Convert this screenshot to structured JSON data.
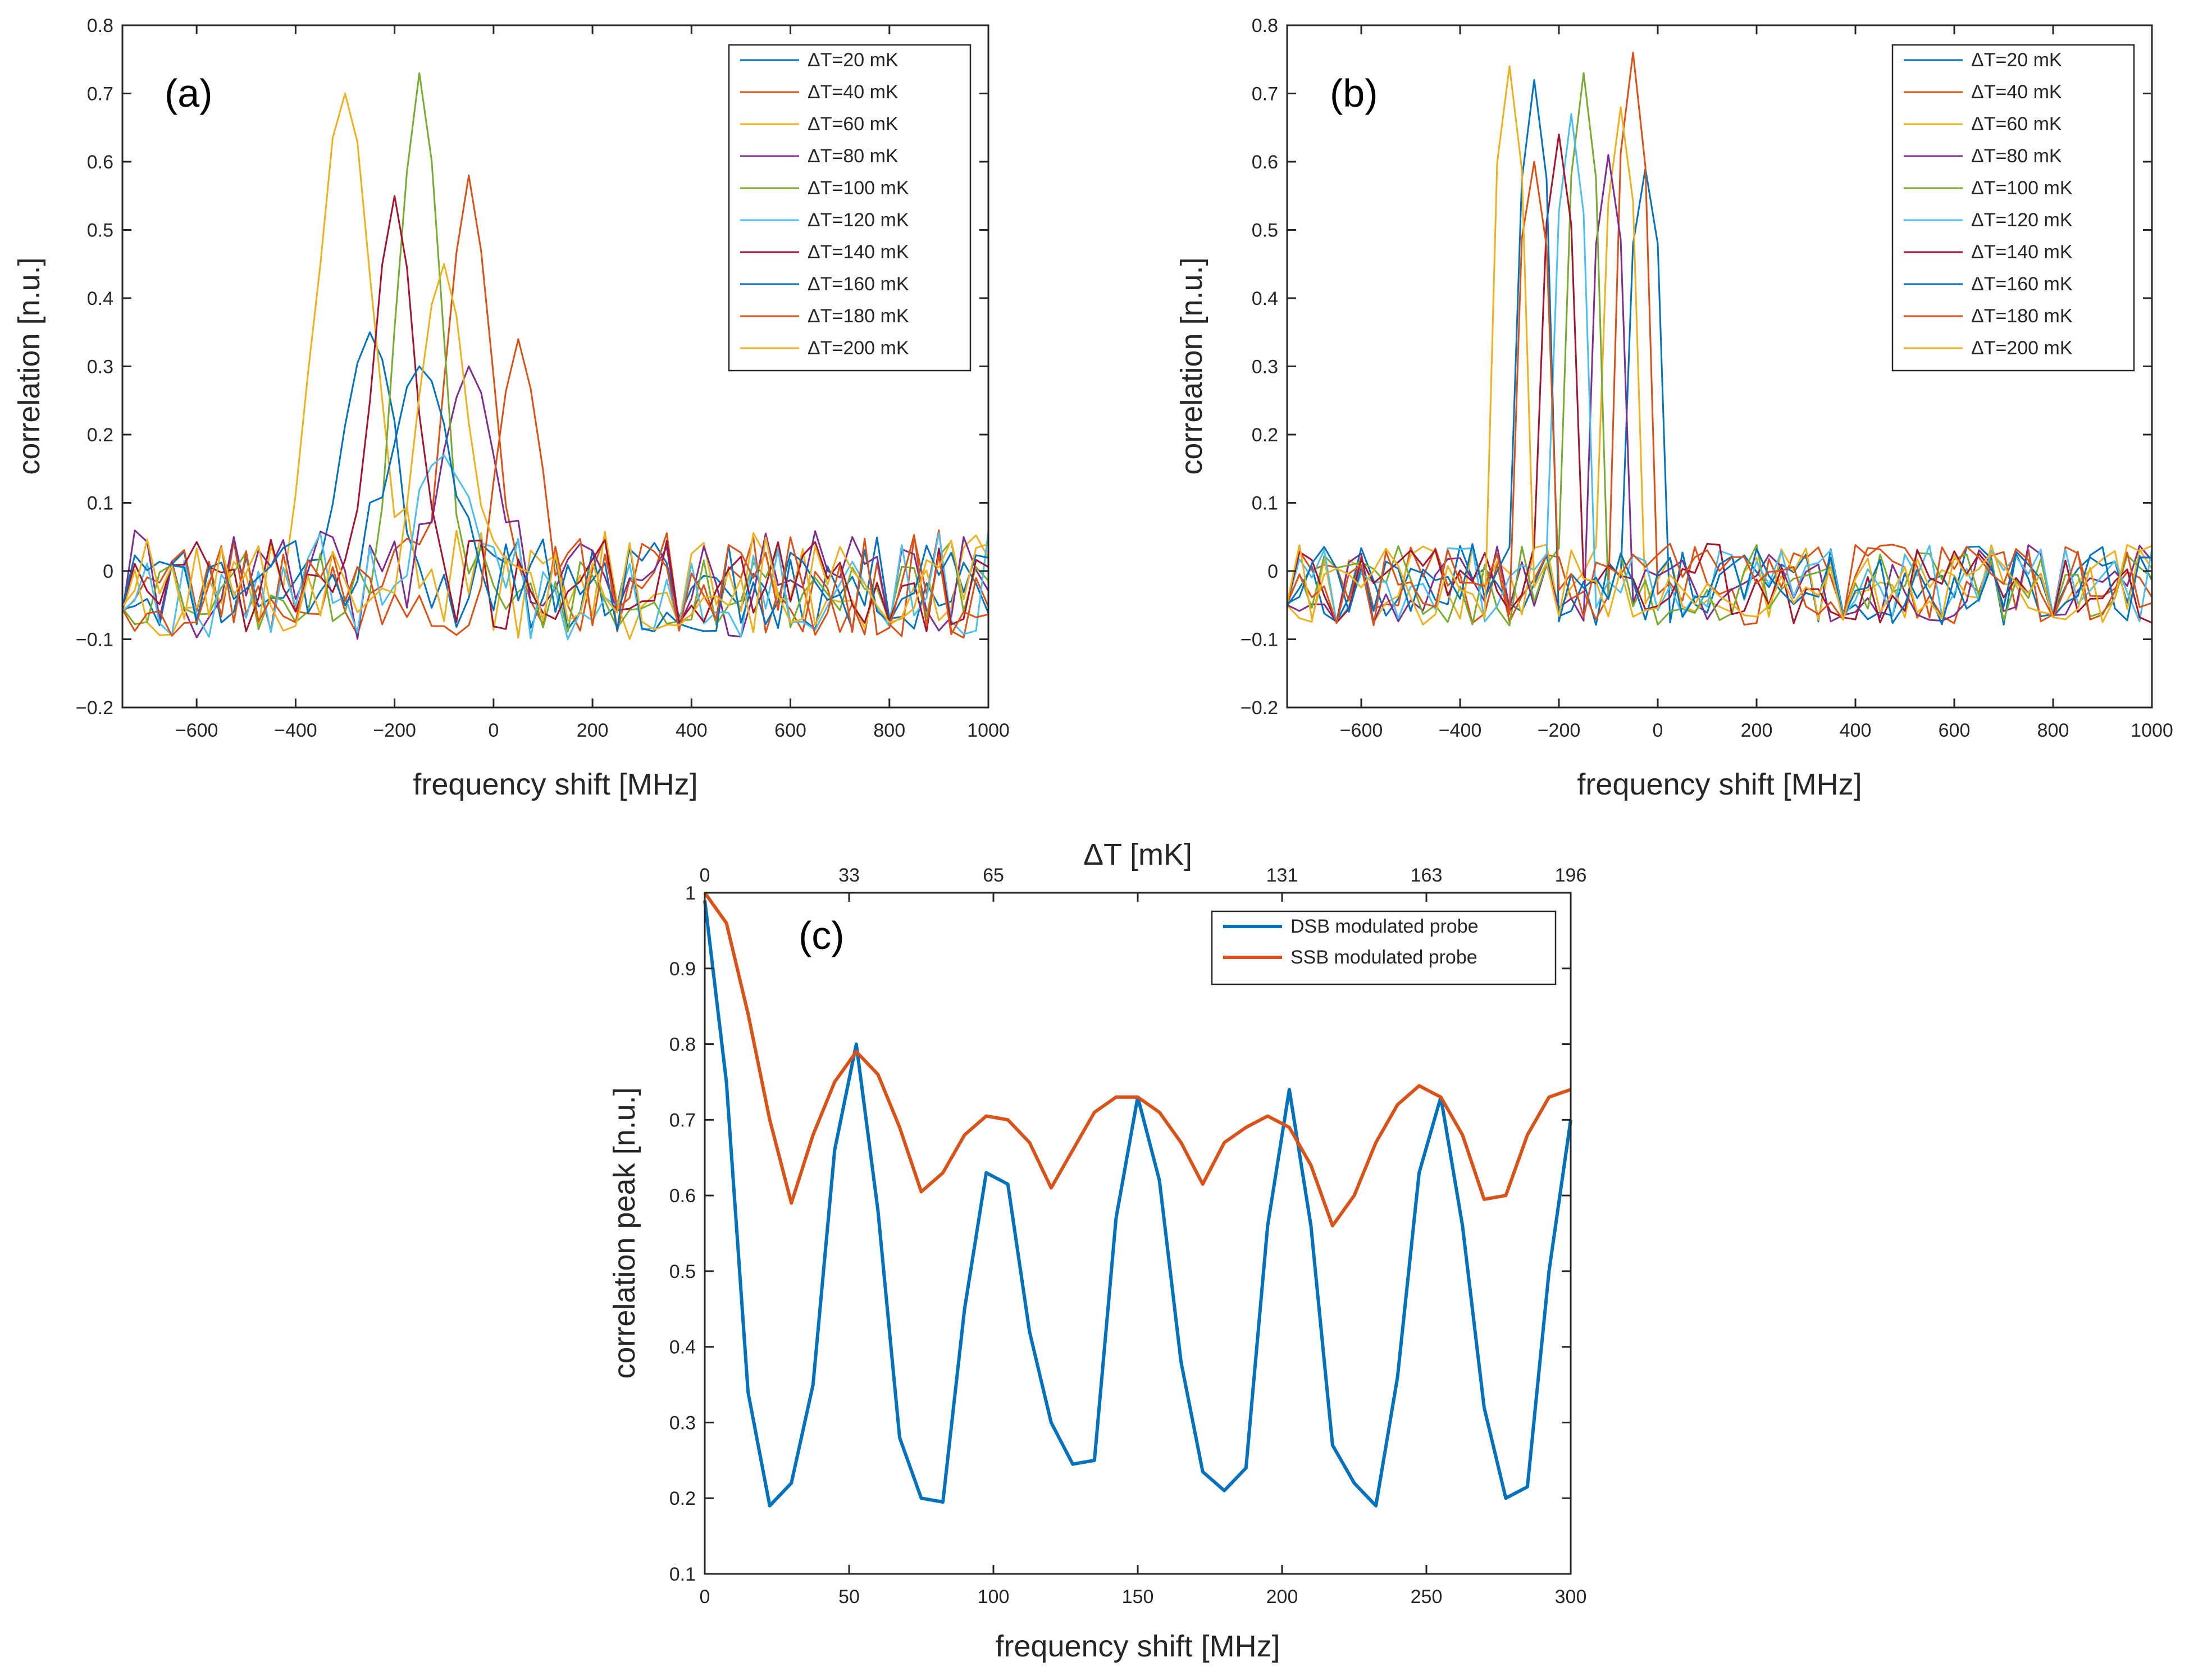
{
  "chart_data": [
    {
      "type": "line",
      "panel_label": "(a)",
      "xlabel": "frequency shift [MHz]",
      "ylabel": "correlation [n.u.]",
      "xlim": [
        -750,
        1000
      ],
      "ylim": [
        -0.2,
        0.8
      ],
      "xticks": [
        -600,
        -400,
        -200,
        0,
        200,
        400,
        600,
        800,
        1000
      ],
      "xtick_labels": [
        "−600",
        "−400",
        "−200",
        "0",
        "200",
        "400",
        "600",
        "800",
        "1000"
      ],
      "yticks": [
        -0.2,
        -0.1,
        0,
        0.1,
        0.2,
        0.3,
        0.4,
        0.5,
        0.6,
        0.7,
        0.8
      ],
      "ytick_labels": [
        "−0.2",
        "−0.1",
        "0",
        "0.1",
        "0.2",
        "0.3",
        "0.4",
        "0.5",
        "0.6",
        "0.7",
        "0.8"
      ],
      "grid": false,
      "legend_position": "top-right",
      "series": [
        {
          "name": "ΔT=20 mK",
          "color": "#0072BD",
          "peak": -250,
          "peak_value": 0.35,
          "width": 50,
          "noise": 0.07,
          "seed": 11,
          "shape": "wide"
        },
        {
          "name": "ΔT=40 mK",
          "color": "#D95319",
          "peak": -50,
          "peak_value": 0.58,
          "width": 40,
          "noise": 0.08,
          "seed": 23,
          "shape": "wide"
        },
        {
          "name": "ΔT=60 mK",
          "color": "#EDB120",
          "peak": -300,
          "peak_value": 0.7,
          "width": 55,
          "noise": 0.08,
          "seed": 37,
          "shape": "wide"
        },
        {
          "name": "ΔT=80 mK",
          "color": "#7E2F8E",
          "peak": -50,
          "peak_value": 0.3,
          "width": 50,
          "noise": 0.08,
          "seed": 41,
          "shape": "wide"
        },
        {
          "name": "ΔT=100 mK",
          "color": "#77AC30",
          "peak": -150,
          "peak_value": 0.73,
          "width": 40,
          "noise": 0.07,
          "seed": 53,
          "shape": "wide"
        },
        {
          "name": "ΔT=120 mK",
          "color": "#4DBEEE",
          "peak": -100,
          "peak_value": 0.17,
          "width": 50,
          "noise": 0.08,
          "seed": 67,
          "shape": "wide"
        },
        {
          "name": "ΔT=140 mK",
          "color": "#A2142F",
          "peak": -200,
          "peak_value": 0.55,
          "width": 40,
          "noise": 0.07,
          "seed": 71,
          "shape": "wide"
        },
        {
          "name": "ΔT=160 mK",
          "color": "#0072BD",
          "peak": -150,
          "peak_value": 0.3,
          "width": 60,
          "noise": 0.07,
          "seed": 83,
          "shape": "wide"
        },
        {
          "name": "ΔT=180 mK",
          "color": "#D95319",
          "peak": 50,
          "peak_value": 0.34,
          "width": 40,
          "noise": 0.08,
          "seed": 97,
          "shape": "wide"
        },
        {
          "name": "ΔT=200 mK",
          "color": "#EDB120",
          "peak": -100,
          "peak_value": 0.45,
          "width": 45,
          "noise": 0.07,
          "seed": 101,
          "shape": "wide"
        }
      ]
    },
    {
      "type": "line",
      "panel_label": "(b)",
      "xlabel": "frequency shift [MHz]",
      "ylabel": "correlation [n.u.]",
      "xlim": [
        -750,
        1000
      ],
      "ylim": [
        -0.2,
        0.8
      ],
      "xticks": [
        -600,
        -400,
        -200,
        0,
        200,
        400,
        600,
        800,
        1000
      ],
      "xtick_labels": [
        "−600",
        "−400",
        "−200",
        "0",
        "200",
        "400",
        "600",
        "800",
        "1000"
      ],
      "yticks": [
        -0.2,
        -0.1,
        0,
        0.1,
        0.2,
        0.3,
        0.4,
        0.5,
        0.6,
        0.7,
        0.8
      ],
      "ytick_labels": [
        "−0.2",
        "−0.1",
        "0",
        "0.1",
        "0.2",
        "0.3",
        "0.4",
        "0.5",
        "0.6",
        "0.7",
        "0.8"
      ],
      "grid": false,
      "legend_position": "top-right",
      "series": [
        {
          "name": "ΔT=20 mK",
          "color": "#0072BD",
          "peak": -25,
          "peak_value": 0.59,
          "width": 12,
          "noise": 0.06,
          "seed": 13,
          "shape": "narrow"
        },
        {
          "name": "ΔT=40 mK",
          "color": "#D95319",
          "peak": -50,
          "peak_value": 0.76,
          "width": 12,
          "noise": 0.06,
          "seed": 29,
          "shape": "narrow"
        },
        {
          "name": "ΔT=60 mK",
          "color": "#EDB120",
          "peak": -75,
          "peak_value": 0.68,
          "width": 12,
          "noise": 0.06,
          "seed": 31,
          "shape": "narrow"
        },
        {
          "name": "ΔT=80 mK",
          "color": "#7E2F8E",
          "peak": -100,
          "peak_value": 0.61,
          "width": 12,
          "noise": 0.06,
          "seed": 43,
          "shape": "narrow"
        },
        {
          "name": "ΔT=100 mK",
          "color": "#77AC30",
          "peak": -150,
          "peak_value": 0.73,
          "width": 12,
          "noise": 0.06,
          "seed": 59,
          "shape": "narrow"
        },
        {
          "name": "ΔT=120 mK",
          "color": "#4DBEEE",
          "peak": -175,
          "peak_value": 0.67,
          "width": 12,
          "noise": 0.06,
          "seed": 61,
          "shape": "narrow"
        },
        {
          "name": "ΔT=140 mK",
          "color": "#A2142F",
          "peak": -200,
          "peak_value": 0.64,
          "width": 12,
          "noise": 0.06,
          "seed": 73,
          "shape": "narrow"
        },
        {
          "name": "ΔT=160 mK",
          "color": "#0072BD",
          "peak": -250,
          "peak_value": 0.72,
          "width": 12,
          "noise": 0.06,
          "seed": 89,
          "shape": "narrow"
        },
        {
          "name": "ΔT=180 mK",
          "color": "#D95319",
          "peak": -250,
          "peak_value": 0.6,
          "width": 15,
          "noise": 0.06,
          "seed": 103,
          "shape": "narrow"
        },
        {
          "name": "ΔT=200 mK",
          "color": "#EDB120",
          "peak": -300,
          "peak_value": 0.74,
          "width": 12,
          "noise": 0.06,
          "seed": 107,
          "shape": "narrow"
        }
      ]
    },
    {
      "type": "line",
      "panel_label": "(c)",
      "xlabel": "frequency shift [MHz]",
      "ylabel": "correlation peak [n.u.]",
      "top_xlabel": "ΔT  [mK]",
      "xlim": [
        0,
        300
      ],
      "ylim": [
        0.1,
        1
      ],
      "xticks": [
        0,
        50,
        100,
        150,
        200,
        250,
        300
      ],
      "xtick_labels": [
        "0",
        "50",
        "100",
        "150",
        "200",
        "250",
        "300"
      ],
      "top_xticks": [
        0,
        50,
        100,
        200,
        250,
        300
      ],
      "top_xtick_labels": [
        "0",
        "33",
        "65",
        "131",
        "163",
        "196"
      ],
      "yticks": [
        0.1,
        0.2,
        0.3,
        0.4,
        0.5,
        0.6,
        0.7,
        0.8,
        0.9,
        1
      ],
      "ytick_labels": [
        "0.1",
        "0.2",
        "0.3",
        "0.4",
        "0.5",
        "0.6",
        "0.7",
        "0.8",
        "0.9",
        "1"
      ],
      "grid": false,
      "legend_position": "top-right",
      "x": [
        0,
        7.5,
        15,
        22.5,
        30,
        37.5,
        45,
        52.5,
        60,
        67.5,
        75,
        82.5,
        90,
        97.5,
        105,
        112.5,
        120,
        127.5,
        135,
        142.5,
        150,
        157.5,
        165,
        172.5,
        180,
        187.5,
        195,
        202.5,
        210,
        217.5,
        225,
        232.5,
        240,
        247.5,
        255,
        262.5,
        270,
        277.5,
        285,
        292.5,
        300
      ],
      "series": [
        {
          "name": "DSB modulated probe",
          "color": "#0072BD",
          "values": [
            0.99,
            0.75,
            0.34,
            0.19,
            0.22,
            0.35,
            0.66,
            0.8,
            0.58,
            0.28,
            0.2,
            0.195,
            0.45,
            0.63,
            0.615,
            0.42,
            0.3,
            0.245,
            0.25,
            0.57,
            0.73,
            0.62,
            0.38,
            0.235,
            0.21,
            0.24,
            0.56,
            0.74,
            0.56,
            0.27,
            0.22,
            0.19,
            0.36,
            0.63,
            0.73,
            0.56,
            0.32,
            0.2,
            0.215,
            0.5,
            0.7
          ]
        },
        {
          "name": "SSB modulated probe",
          "color": "#D95319",
          "values": [
            1.0,
            0.96,
            0.84,
            0.7,
            0.59,
            0.68,
            0.75,
            0.79,
            0.76,
            0.69,
            0.605,
            0.63,
            0.68,
            0.705,
            0.7,
            0.67,
            0.61,
            0.66,
            0.71,
            0.73,
            0.73,
            0.71,
            0.67,
            0.615,
            0.67,
            0.69,
            0.705,
            0.69,
            0.64,
            0.56,
            0.6,
            0.67,
            0.72,
            0.745,
            0.73,
            0.68,
            0.595,
            0.6,
            0.68,
            0.73,
            0.74
          ]
        }
      ]
    }
  ]
}
